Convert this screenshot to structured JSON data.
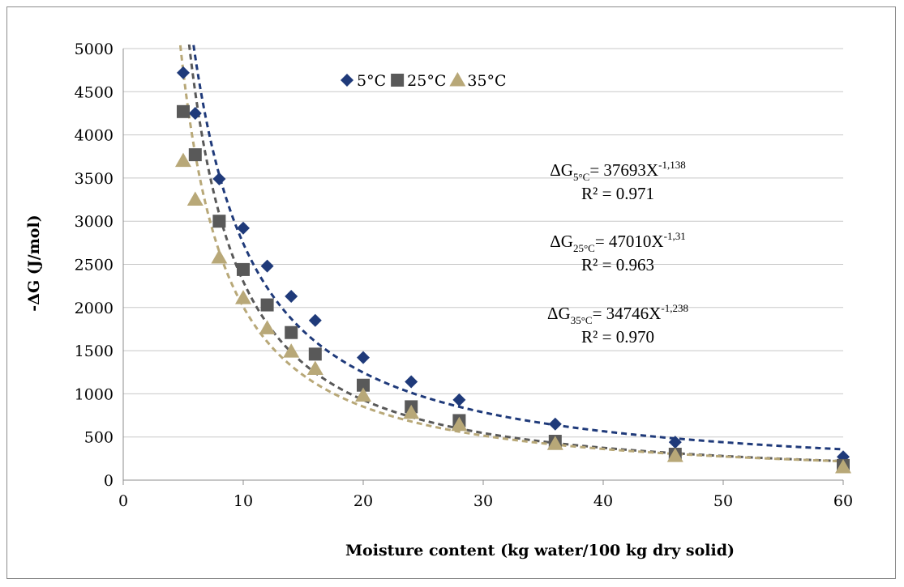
{
  "chart_data": {
    "type": "scatter",
    "title": "",
    "xlabel": "Moisture content (kg water/100 kg dry solid)",
    "ylabel": "-ΔG (J/mol)",
    "xlim": [
      0,
      60
    ],
    "ylim": [
      0,
      5000
    ],
    "x_ticks": [
      "0",
      "10",
      "20",
      "30",
      "40",
      "50",
      "60"
    ],
    "y_ticks": [
      "0",
      "500",
      "1000",
      "1500",
      "2000",
      "2500",
      "3000",
      "3500",
      "4000",
      "4500",
      "5000"
    ],
    "grid": "horizontal",
    "legend_position": "top-center",
    "series": [
      {
        "name": "5°C",
        "marker": "diamond",
        "color": "#1F3A7A",
        "points": [
          [
            5,
            4720
          ],
          [
            6,
            4250
          ],
          [
            8,
            3490
          ],
          [
            10,
            2920
          ],
          [
            12,
            2480
          ],
          [
            14,
            2130
          ],
          [
            16,
            1850
          ],
          [
            20,
            1420
          ],
          [
            24,
            1140
          ],
          [
            28,
            930
          ],
          [
            36,
            650
          ],
          [
            46,
            440
          ],
          [
            60,
            270
          ]
        ],
        "trendline": {
          "type": "power",
          "a": 37693,
          "b": -1.138
        }
      },
      {
        "name": "25°C",
        "marker": "square",
        "color": "#595959",
        "points": [
          [
            5,
            4270
          ],
          [
            6,
            3770
          ],
          [
            8,
            3000
          ],
          [
            10,
            2440
          ],
          [
            12,
            2030
          ],
          [
            14,
            1710
          ],
          [
            16,
            1460
          ],
          [
            20,
            1100
          ],
          [
            24,
            850
          ],
          [
            28,
            690
          ],
          [
            36,
            450
          ],
          [
            46,
            300
          ],
          [
            60,
            170
          ]
        ],
        "trendline": {
          "type": "power",
          "a": 47010,
          "b": -1.31
        }
      },
      {
        "name": "35°C",
        "marker": "triangle",
        "color": "#B8A878",
        "points": [
          [
            5,
            3700
          ],
          [
            6,
            3250
          ],
          [
            8,
            2580
          ],
          [
            10,
            2110
          ],
          [
            12,
            1760
          ],
          [
            14,
            1490
          ],
          [
            16,
            1290
          ],
          [
            20,
            980
          ],
          [
            24,
            780
          ],
          [
            28,
            640
          ],
          [
            36,
            420
          ],
          [
            46,
            280
          ],
          [
            60,
            150
          ]
        ],
        "trendline": {
          "type": "power",
          "a": 34746,
          "b": -1.238
        }
      }
    ],
    "annotations": [
      {
        "pre": "ΔG",
        "sub": "5°C",
        "mid": "= 37693X",
        "sup": "-1,138",
        "r2": "R² = 0.971"
      },
      {
        "pre": "ΔG",
        "sub": "25°C",
        "mid": "= 47010X",
        "sup": "-1,31",
        "r2": "R² = 0.963"
      },
      {
        "pre": "ΔG",
        "sub": "35°C",
        "mid": "= 34746X",
        "sup": "-1,238",
        "r2": "R² = 0.970"
      }
    ]
  }
}
